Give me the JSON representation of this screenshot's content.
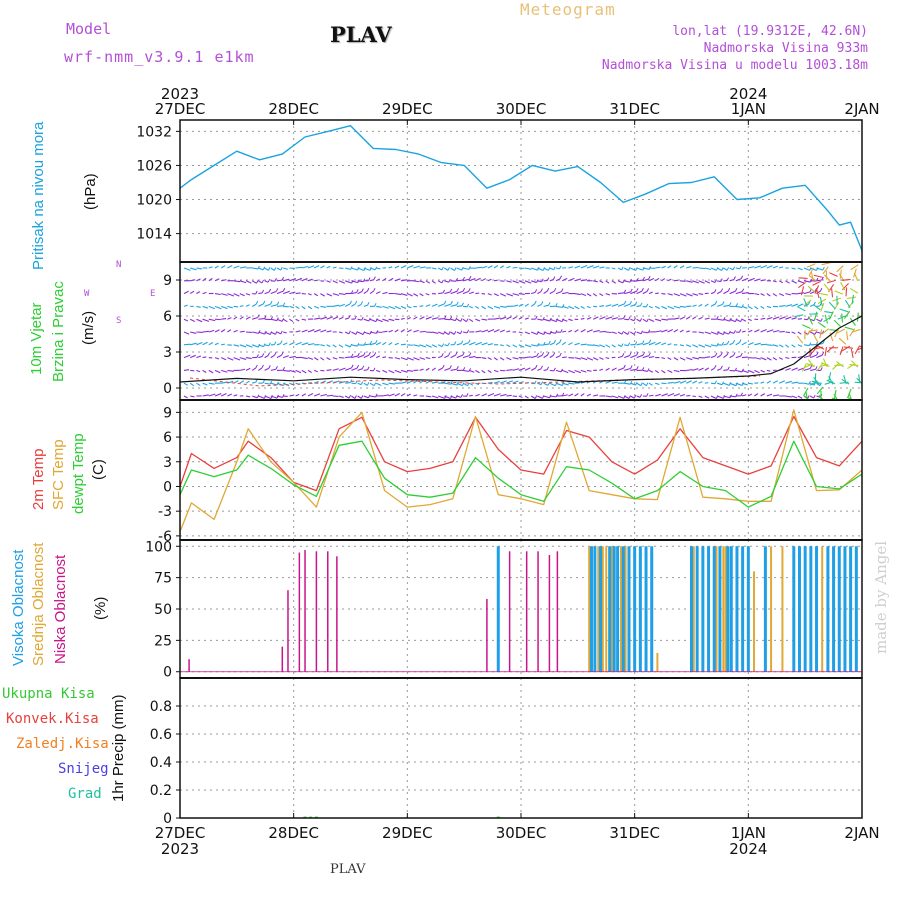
{
  "header": {
    "model_label": "Model",
    "model_name": "wrf-nmm_v3.9.1  e1km",
    "station": "PLAV",
    "title": "Meteogram",
    "lonlat": "lon,lat (19.9312E, 42.6N)",
    "elevation": "Nadmorska Visina 933m",
    "model_elevation": "Nadmorska Visina u modelu 1003.18m",
    "footer_station": "PLAV",
    "watermark": "made by Angel"
  },
  "time_axis": {
    "ticks": [
      "27DEC",
      "28DEC",
      "29DEC",
      "30DEC",
      "31DEC",
      "1JAN",
      "2JAN"
    ],
    "years_top": [
      {
        "label": "2023",
        "at": 0
      },
      {
        "label": "2024",
        "at": 5
      }
    ],
    "years_bottom": [
      {
        "label": "2023",
        "at": 0
      },
      {
        "label": "2024",
        "at": 5
      }
    ]
  },
  "panel_labels": {
    "pressure": {
      "name": "Pritisak na nivou mora",
      "unit": "(hPa)"
    },
    "wind": {
      "name1": "10m Vjetar",
      "name2": "Brzina i Pravac",
      "unit": "(m/s)",
      "compass_n": "N",
      "compass_s": "S",
      "compass_w": "W",
      "compass_e": "E"
    },
    "temp": {
      "t2m": "2m Temp",
      "sfc": "SFC Temp",
      "dew": "dewpt Temp",
      "unit": "(C)"
    },
    "cloud": {
      "high": "Visoka Oblacnost",
      "mid": "Srednja Oblacnost",
      "low": "Niska Oblacnost",
      "unit": "(%)"
    },
    "precip": {
      "total": "Ukupna Kisa",
      "conv": "Konvek.Kisa",
      "frz": "Zaledj.Kisa",
      "snow": "Snijeg",
      "grad": "Grad",
      "unit": "1hr Precip (mm)"
    }
  },
  "colors": {
    "pressure": "#1ba3e0",
    "t2m": "#e8403e",
    "sfc": "#e0a835",
    "dew": "#2ecf35",
    "high": "#1e9fe6",
    "mid": "#e0a835",
    "low": "#c8168a",
    "total": "#35c935",
    "conv": "#e8403e",
    "frz": "#f08020",
    "snow": "#4a3ee6",
    "grad": "#20c0a0",
    "purple": "#b34fd6"
  },
  "chart_data": [
    {
      "type": "line",
      "name": "pressure",
      "ylim": [
        1009,
        1034
      ],
      "yticks": [
        1014,
        1020,
        1026,
        1032
      ],
      "x": [
        0,
        0.1,
        0.3,
        0.5,
        0.7,
        0.9,
        1.1,
        1.3,
        1.5,
        1.7,
        1.9,
        2.1,
        2.3,
        2.5,
        2.7,
        2.9,
        3.1,
        3.3,
        3.5,
        3.7,
        3.9,
        4.1,
        4.3,
        4.5,
        4.7,
        4.9,
        5.1,
        5.3,
        5.5,
        5.7,
        5.8,
        5.9,
        6.0
      ],
      "y": [
        1022,
        1023.5,
        1026,
        1028.5,
        1027,
        1028,
        1031,
        1032,
        1033,
        1029,
        1028.8,
        1028,
        1026.5,
        1026,
        1022,
        1023.5,
        1026,
        1025,
        1025.8,
        1023,
        1019.5,
        1021,
        1022.8,
        1023,
        1024,
        1020,
        1020.3,
        1022,
        1022.5,
        1018,
        1015.5,
        1016,
        1011
      ]
    },
    {
      "type": "line",
      "name": "wind_speed",
      "ylim": [
        -1,
        10.5
      ],
      "yticks": [
        0,
        3,
        6,
        9
      ],
      "x": [
        0,
        0.5,
        1,
        1.5,
        2,
        2.5,
        3,
        3.5,
        4,
        4.5,
        5,
        5.2,
        5.4,
        5.6,
        5.8,
        6.0
      ],
      "y": [
        0.5,
        0.8,
        0.6,
        0.9,
        0.7,
        0.6,
        0.9,
        0.5,
        0.7,
        0.8,
        1.0,
        1.2,
        2.0,
        3.5,
        5,
        6
      ]
    },
    {
      "type": "line",
      "name": "temperature",
      "ylim": [
        -6.5,
        10.5
      ],
      "yticks": [
        -6,
        -3,
        0,
        3,
        6,
        9
      ],
      "series": [
        {
          "name": "2m Temp",
          "x": [
            0,
            0.1,
            0.3,
            0.5,
            0.6,
            0.8,
            1.0,
            1.2,
            1.4,
            1.6,
            1.8,
            2.0,
            2.2,
            2.4,
            2.6,
            2.8,
            3.0,
            3.2,
            3.4,
            3.6,
            3.8,
            4.0,
            4.2,
            4.4,
            4.6,
            4.8,
            5.0,
            5.2,
            5.4,
            5.6,
            5.8,
            6.0
          ],
          "y": [
            0,
            4,
            2.2,
            3.5,
            5.5,
            3.5,
            0.5,
            -0.5,
            7,
            8.4,
            3,
            1.8,
            2.2,
            3,
            8.4,
            4.5,
            2,
            1.5,
            6.8,
            6,
            3,
            1.5,
            3.2,
            7,
            3.5,
            2.5,
            1.5,
            2.5,
            8.5,
            3.5,
            2.5,
            5.5
          ]
        },
        {
          "name": "SFC Temp",
          "x": [
            0,
            0.1,
            0.3,
            0.5,
            0.6,
            0.8,
            1.0,
            1.2,
            1.4,
            1.6,
            1.8,
            2.0,
            2.2,
            2.4,
            2.6,
            2.8,
            3.0,
            3.2,
            3.4,
            3.6,
            3.8,
            4.0,
            4.2,
            4.4,
            4.6,
            4.8,
            5.0,
            5.2,
            5.4,
            5.6,
            5.8,
            6.0
          ],
          "y": [
            -5.5,
            -2,
            -4,
            3,
            7,
            3,
            0.5,
            -2.5,
            6,
            9,
            -0.5,
            -2.5,
            -2.2,
            -1.5,
            8.5,
            -1,
            -1.5,
            -2.2,
            7.8,
            -0.5,
            -1,
            -1.5,
            -1.6,
            8.4,
            -1.3,
            -1.5,
            -1.8,
            -1.8,
            9.3,
            -0.5,
            -0.4,
            2
          ]
        },
        {
          "name": "dewpt Temp",
          "x": [
            0,
            0.1,
            0.3,
            0.5,
            0.6,
            0.8,
            1.0,
            1.2,
            1.4,
            1.6,
            1.8,
            2.0,
            2.2,
            2.4,
            2.6,
            2.8,
            3.0,
            3.2,
            3.4,
            3.6,
            3.8,
            4.0,
            4.2,
            4.4,
            4.6,
            4.8,
            5.0,
            5.2,
            5.4,
            5.6,
            5.8,
            6.0
          ],
          "y": [
            -1,
            2,
            1.2,
            2,
            3.8,
            2.2,
            0.2,
            -1.2,
            5,
            5.5,
            1,
            -1,
            -1.3,
            -0.8,
            3.5,
            1,
            -1,
            -1.8,
            2.4,
            2,
            0.4,
            -1.5,
            -0.5,
            1.8,
            0,
            -0.5,
            -2.5,
            -1.2,
            5.5,
            0,
            -0.3,
            1.5
          ]
        }
      ]
    },
    {
      "type": "bar",
      "name": "cloud_cover",
      "ylim": [
        -5,
        105
      ],
      "yticks": [
        0,
        25,
        50,
        75,
        100
      ],
      "series": [
        {
          "name": "Niska Oblacnost",
          "x": [
            0.08,
            0.9,
            0.95,
            1.05,
            1.1,
            1.2,
            1.3,
            1.38,
            2.7,
            2.9,
            3.05,
            3.15,
            3.25,
            3.32,
            4.75,
            5.6,
            5.65,
            5.7,
            5.75,
            5.8
          ],
          "values": [
            10,
            20,
            65,
            95,
            97,
            96,
            96,
            92,
            58,
            96,
            96,
            96,
            93,
            96,
            10,
            96,
            96,
            96,
            96,
            96
          ]
        },
        {
          "name": "Srednja Oblacnost",
          "x": [
            3.6,
            3.62,
            3.65,
            3.68,
            3.7,
            3.72,
            3.75,
            3.78,
            3.8,
            3.82,
            3.85,
            3.88,
            3.92,
            4.2,
            4.5,
            4.52,
            4.55,
            4.6,
            4.65,
            4.7,
            4.72,
            4.75,
            4.78,
            4.8,
            4.85,
            4.9,
            4.95,
            5.05,
            5.2,
            5.3,
            5.6,
            5.65
          ],
          "values": [
            100,
            100,
            100,
            100,
            100,
            100,
            100,
            100,
            100,
            100,
            100,
            100,
            100,
            15,
            20,
            100,
            100,
            100,
            100,
            100,
            100,
            100,
            100,
            100,
            100,
            100,
            100,
            80,
            100,
            100,
            25,
            100
          ]
        },
        {
          "name": "Visoka Oblacnost",
          "x": [
            2.8,
            3.62,
            3.65,
            3.7,
            3.78,
            3.82,
            3.85,
            3.9,
            3.95,
            4.0,
            4.05,
            4.1,
            4.15,
            4.5,
            4.55,
            4.6,
            4.65,
            4.7,
            4.75,
            4.82,
            4.85,
            4.9,
            4.95,
            5.0,
            5.15,
            5.4,
            5.45,
            5.5,
            5.55,
            5.6,
            5.7,
            5.75,
            5.8,
            5.85,
            5.9,
            5.95
          ],
          "values": [
            100,
            100,
            100,
            100,
            100,
            100,
            100,
            100,
            100,
            100,
            100,
            100,
            100,
            100,
            100,
            100,
            100,
            100,
            100,
            100,
            100,
            100,
            100,
            100,
            100,
            100,
            100,
            100,
            100,
            100,
            100,
            100,
            100,
            100,
            100,
            100
          ]
        }
      ]
    },
    {
      "type": "bar",
      "name": "precipitation",
      "ylim": [
        0,
        1.0
      ],
      "yticks": [
        0,
        0.2,
        0.4,
        0.6,
        0.8
      ],
      "series": [
        {
          "name": "Ukupna Kisa",
          "x": [
            1.1,
            1.15,
            1.2,
            2.8
          ],
          "values": [
            0.01,
            0.01,
            0.01,
            0.01
          ]
        }
      ]
    }
  ]
}
